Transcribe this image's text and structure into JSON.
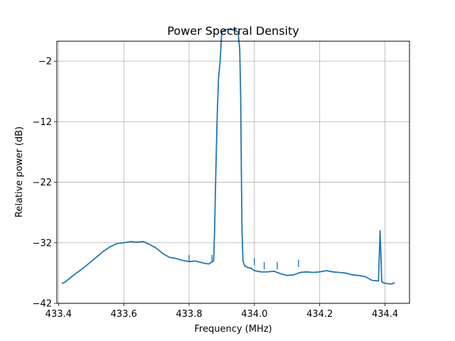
{
  "chart_data": {
    "type": "line",
    "title": "Power Spectral Density",
    "xlabel": "Frequency (MHz)",
    "ylabel": "Relative power (dB)",
    "xlim": [
      433.395,
      434.475
    ],
    "ylim": [
      -42,
      1.3
    ],
    "xticks": [
      433.4,
      433.6,
      433.8,
      434.0,
      434.2,
      434.4
    ],
    "xtick_labels": [
      "433.4",
      "433.6",
      "433.8",
      "434.0",
      "434.2",
      "434.4"
    ],
    "yticks": [
      -42,
      -32,
      -22,
      -12,
      -2
    ],
    "ytick_labels": [
      "−42",
      "−32",
      "−22",
      "−12",
      "−2"
    ],
    "grid": true,
    "legend": "none",
    "colors": {
      "line": "#1f77b4",
      "grid": "#b0b0b0",
      "axes": "#000000"
    },
    "series": [
      {
        "values_x": [
          433.41,
          433.42,
          433.44,
          433.46,
          433.48,
          433.5,
          433.52,
          433.54,
          433.56,
          433.58,
          433.6,
          433.62,
          433.64,
          433.66,
          433.68,
          433.7,
          433.72,
          433.74,
          433.76,
          433.78,
          433.8,
          433.82,
          433.84,
          433.86,
          433.875,
          433.878,
          433.882,
          433.886,
          433.89,
          433.895,
          433.9,
          433.91,
          433.92,
          433.93,
          433.94,
          433.95,
          433.955,
          433.958,
          433.96,
          433.962,
          433.965,
          433.97,
          433.98,
          433.99,
          434.0,
          434.02,
          434.04,
          434.06,
          434.08,
          434.1,
          434.12,
          434.14,
          434.16,
          434.18,
          434.2,
          434.22,
          434.24,
          434.26,
          434.28,
          434.3,
          434.32,
          434.34,
          434.36,
          434.38,
          434.385,
          434.39,
          434.395,
          434.4,
          434.42,
          434.43
        ],
        "values_y": [
          -38.7,
          -38.5,
          -37.6,
          -36.8,
          -36.0,
          -35.1,
          -34.2,
          -33.3,
          -32.6,
          -32.1,
          -32.0,
          -31.8,
          -31.9,
          -31.8,
          -32.3,
          -32.9,
          -33.8,
          -34.4,
          -34.6,
          -34.9,
          -35.1,
          -35.0,
          -35.3,
          -35.5,
          -35.0,
          -30.0,
          -20.0,
          -11.0,
          -5.0,
          -2.0,
          2.8,
          3.2,
          3.3,
          3.2,
          3.1,
          2.8,
          0.0,
          -8.0,
          -20.0,
          -30.0,
          -35.0,
          -35.8,
          -36.1,
          -36.2,
          -36.6,
          -36.8,
          -36.8,
          -36.7,
          -37.1,
          -37.4,
          -37.3,
          -36.9,
          -36.8,
          -36.9,
          -36.8,
          -36.6,
          -36.8,
          -36.9,
          -37.0,
          -37.3,
          -37.4,
          -37.6,
          -38.2,
          -38.3,
          -30.0,
          -38.4,
          -38.6,
          -38.7,
          -38.8,
          -38.6
        ],
        "spikes_x": [
          433.8,
          433.87,
          434.0,
          434.03,
          434.07,
          434.135,
          434.385
        ],
        "spikes_y": [
          -34.0,
          -34.0,
          -34.5,
          -35.2,
          -35.2,
          -34.8,
          -30.0
        ]
      }
    ]
  }
}
